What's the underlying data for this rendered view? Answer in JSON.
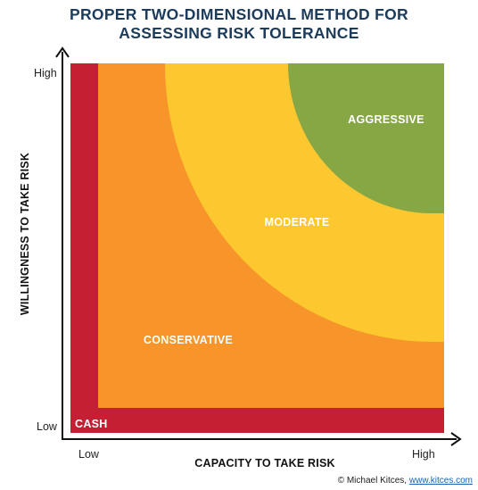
{
  "title": {
    "line1": "PROPER TWO-DIMENSIONAL METHOD FOR",
    "line2": "ASSESSING RISK TOLERANCE"
  },
  "axes": {
    "x_title": "CAPACITY TO TAKE RISK",
    "y_title": "WILLINGNESS TO TAKE RISK",
    "x_low": "Low",
    "x_high": "High",
    "y_low": "Low",
    "y_high": "High"
  },
  "zones": {
    "cash": "CASH",
    "conservative": "CONSERVATIVE",
    "moderate": "MODERATE",
    "aggressive": "AGGRESSIVE"
  },
  "colors": {
    "cash": "#c41f33",
    "conservative": "#f7952a",
    "moderate": "#fdc82f",
    "aggressive": "#86a744",
    "title": "#1d3b5a"
  },
  "credit": {
    "text": "© Michael Kitces,",
    "link": "www.kitces.com"
  }
}
